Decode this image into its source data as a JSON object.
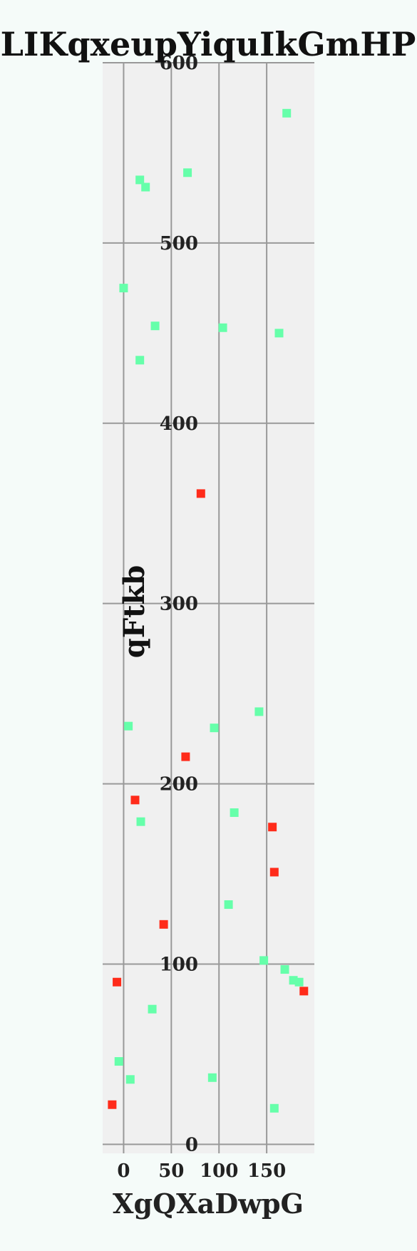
{
  "chart_data": {
    "type": "scatter",
    "title": "LIKqxeupYiquIkGmHP",
    "xlabel": "XgQXaDwpG",
    "ylabel": "qFtkb",
    "xlim": [
      -22,
      200
    ],
    "ylim": [
      -5,
      600
    ],
    "xticks": [
      0,
      50,
      100,
      150
    ],
    "yticks": [
      0,
      100,
      200,
      300,
      400,
      500,
      600
    ],
    "grid": true,
    "colors": {
      "plot_bg": "#f0f0f0",
      "grid": "#999999",
      "green": "#66ffaa",
      "red": "#ff2b1a"
    },
    "series": [
      {
        "color": "#66ffaa",
        "points": [
          [
            171,
            572
          ],
          [
            67,
            539
          ],
          [
            17,
            535
          ],
          [
            23,
            531
          ],
          [
            0,
            475
          ],
          [
            33,
            454
          ],
          [
            104,
            453
          ],
          [
            163,
            450
          ],
          [
            17,
            435
          ],
          [
            142,
            240
          ],
          [
            5,
            232
          ],
          [
            95,
            231
          ],
          [
            116,
            184
          ],
          [
            18,
            179
          ],
          [
            110,
            133
          ],
          [
            147,
            102
          ],
          [
            169,
            97
          ],
          [
            178,
            91
          ],
          [
            184,
            90
          ],
          [
            30,
            75
          ],
          [
            -5,
            46
          ],
          [
            7,
            36
          ],
          [
            93,
            37
          ],
          [
            158,
            20
          ]
        ]
      },
      {
        "color": "#ff2b1a",
        "points": [
          [
            81,
            361
          ],
          [
            65,
            215
          ],
          [
            12,
            191
          ],
          [
            156,
            176
          ],
          [
            158,
            151
          ],
          [
            42,
            122
          ],
          [
            -7,
            90
          ],
          [
            189,
            85
          ],
          [
            -12,
            22
          ]
        ]
      }
    ]
  }
}
